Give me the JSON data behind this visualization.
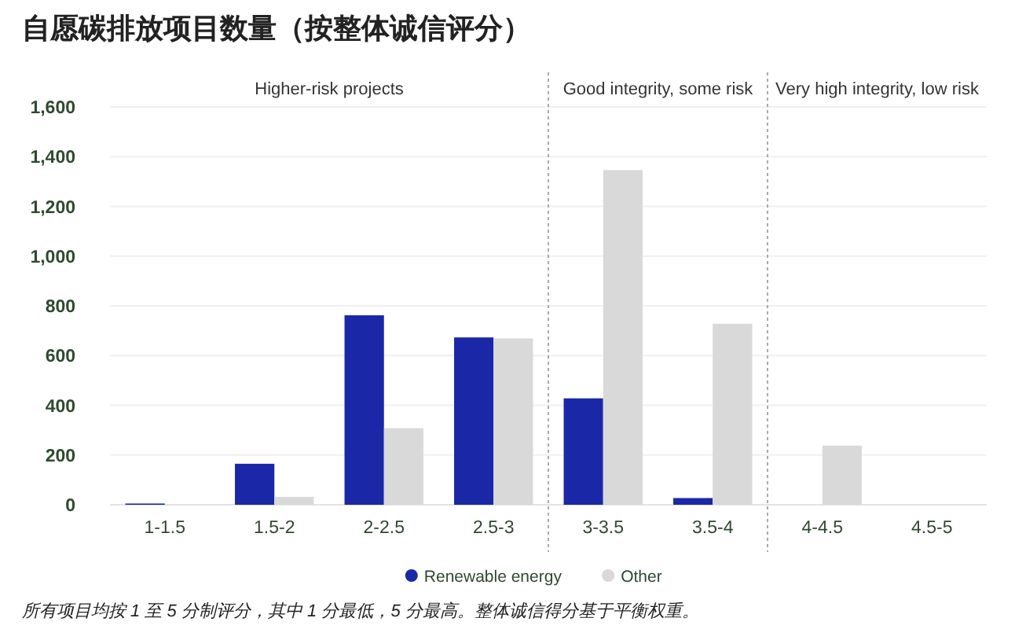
{
  "chart_data": {
    "type": "bar",
    "title": "自愿碳排放项目数量（按整体诚信评分）",
    "categories": [
      "1-1.5",
      "1.5-2",
      "2-2.5",
      "2.5-3",
      "3-3.5",
      "3.5-4",
      "4-4.5",
      "4.5-5"
    ],
    "series": [
      {
        "name": "Renewable energy",
        "color": "#1a28a8",
        "values": [
          5,
          165,
          762,
          673,
          428,
          27,
          0,
          0
        ]
      },
      {
        "name": "Other",
        "color": "#d9d9d9",
        "values": [
          0,
          32,
          308,
          669,
          1346,
          728,
          238,
          0
        ]
      }
    ],
    "ylim": [
      0,
      1600
    ],
    "yticks": [
      0,
      {
        "value": 200,
        "label": "200"
      },
      {
        "value": 400,
        "label": "400"
      },
      {
        "value": 600,
        "label": "600"
      },
      {
        "value": 800,
        "label": "800"
      },
      {
        "value": 1000,
        "label": "1,000"
      },
      {
        "value": 1200,
        "label": "1,200"
      },
      {
        "value": 1400,
        "label": "1,400"
      },
      {
        "value": 1600,
        "label": "1,600"
      }
    ],
    "grid": "y",
    "legend": "bottom",
    "marker": "circle",
    "annotations": [
      "Higher-risk projects",
      "Good integrity, some risk",
      "Very high integrity, low risk",
      "所有项目均按 1 至 5 分制评分，其中 1 分最低，5 分最高。整体诚信得分基于平衡权重。"
    ]
  }
}
